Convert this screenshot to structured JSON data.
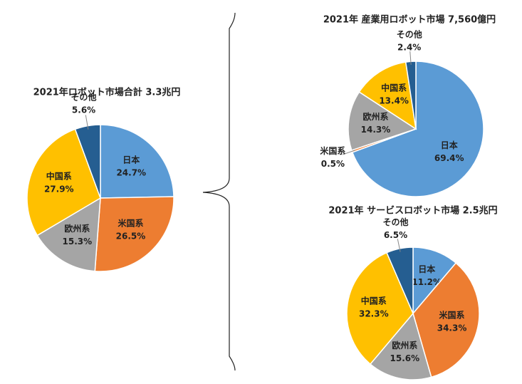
{
  "chart_data": [
    {
      "type": "pie",
      "title": "2021年ロボット市場合計 3.3兆円",
      "categories": [
        "日本",
        "米国系",
        "欧州系",
        "中国系",
        "その他"
      ],
      "values": [
        24.7,
        26.5,
        15.3,
        27.9,
        5.6
      ],
      "value_labels": [
        "24.7%",
        "26.5%",
        "15.3%",
        "27.9%",
        "5.6%"
      ],
      "colors": [
        "#5b9bd5",
        "#ed7d31",
        "#a5a5a5",
        "#ffc000",
        "#255e91"
      ]
    },
    {
      "type": "pie",
      "title": "2021年 産業用ロボット市場 7,560億円",
      "categories": [
        "日本",
        "米国系",
        "欧州系",
        "中国系",
        "その他"
      ],
      "values": [
        69.4,
        0.5,
        14.3,
        13.4,
        2.4
      ],
      "value_labels": [
        "69.4%",
        "0.5%",
        "14.3%",
        "13.4%",
        "2.4%"
      ],
      "colors": [
        "#5b9bd5",
        "#ed7d31",
        "#a5a5a5",
        "#ffc000",
        "#255e91"
      ]
    },
    {
      "type": "pie",
      "title": "2021年 サービスロボット市場 2.5兆円",
      "categories": [
        "日本",
        "米国系",
        "欧州系",
        "中国系",
        "その他"
      ],
      "values": [
        11.2,
        34.3,
        15.6,
        32.3,
        6.5
      ],
      "value_labels": [
        "11.2%",
        "34.3%",
        "15.6%",
        "32.3%",
        "6.5%"
      ],
      "colors": [
        "#5b9bd5",
        "#ed7d31",
        "#a5a5a5",
        "#ffc000",
        "#255e91"
      ]
    }
  ]
}
